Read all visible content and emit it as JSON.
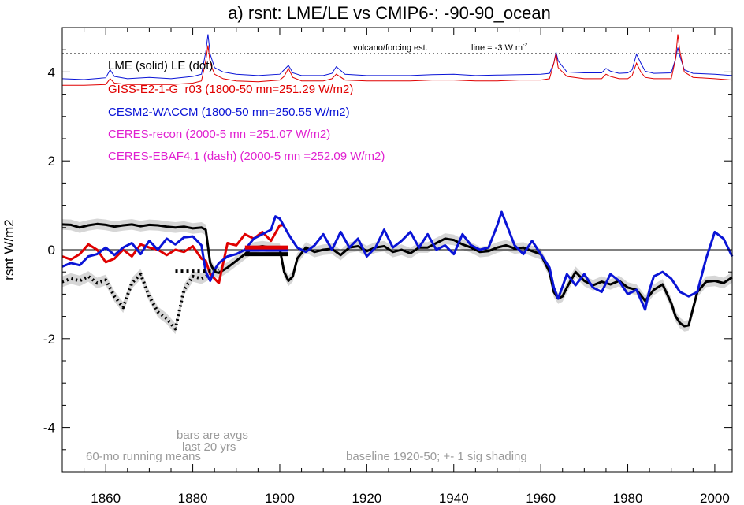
{
  "chart_data": {
    "type": "line",
    "title": "a) rsnt: LME/LE vs CMIP6-: -90-90_ocean",
    "ylabel": "rsnt W/m2",
    "xlabel": "",
    "xlim": [
      1850,
      2004
    ],
    "ylim": [
      -5,
      5
    ],
    "x_ticks": [
      1860,
      1880,
      1900,
      1920,
      1940,
      1960,
      1980,
      2000
    ],
    "y_ticks": [
      -4,
      -2,
      0,
      2,
      4
    ],
    "grid": false,
    "zero_line": 0,
    "volcano_panel": {
      "label": "volcano/forcing est.",
      "line_label": "line = -3 W m",
      "line_label_sup": "-2",
      "reference_y": 4.42
    },
    "legend": [
      {
        "text": "LME (solid)   LE (dot)",
        "color": "#000000"
      },
      {
        "text": "GISS-E2-1-G_r03 (1800-50 mn=251.29 W/m2)",
        "color": "#e00000"
      },
      {
        "text": "CESM2-WACCM (1800-50 mn=250.55 W/m2)",
        "color": "#0a14d6"
      },
      {
        "text": "CERES-recon (2000-5 mn =251.07 W/m2)",
        "color": "#e020d0"
      },
      {
        "text": "CERES-EBAF4.1 (dash) (2000-5 mn =252.09 W/m2)",
        "color": "#e020d0"
      }
    ],
    "annotations": {
      "bars_note_1": "bars are avgs",
      "bars_note_2": "last 20 yrs",
      "running_mean": "60-mo running means",
      "baseline": "baseline 1920-50; +- 1 sig shading"
    },
    "series": [
      {
        "name": "LME (solid)",
        "color": "#000000",
        "x": [
          1850,
          1852,
          1854,
          1856,
          1858,
          1860,
          1862,
          1864,
          1866,
          1868,
          1870,
          1872,
          1874,
          1876,
          1878,
          1880,
          1882,
          1883,
          1884,
          1885,
          1886,
          1888,
          1890,
          1892,
          1894,
          1896,
          1898,
          1900,
          1901,
          1902,
          1903,
          1904,
          1906,
          1908,
          1910,
          1912,
          1914,
          1916,
          1918,
          1920,
          1922,
          1924,
          1926,
          1928,
          1930,
          1932,
          1934,
          1936,
          1938,
          1940,
          1942,
          1944,
          1946,
          1948,
          1950,
          1952,
          1954,
          1956,
          1958,
          1960,
          1962,
          1963,
          1964,
          1965,
          1966,
          1968,
          1970,
          1972,
          1974,
          1976,
          1978,
          1980,
          1982,
          1984,
          1986,
          1988,
          1990,
          1991,
          1992,
          1993,
          1994,
          1996,
          1998,
          2000,
          2002,
          2004
        ],
        "y": [
          0.57,
          0.56,
          0.5,
          0.55,
          0.58,
          0.56,
          0.52,
          0.55,
          0.57,
          0.53,
          0.56,
          0.55,
          0.52,
          0.5,
          0.52,
          0.48,
          0.5,
          0.45,
          -0.3,
          -0.5,
          -0.52,
          -0.4,
          -0.25,
          -0.1,
          0.05,
          0.08,
          0.05,
          0.02,
          -0.5,
          -0.7,
          -0.6,
          -0.2,
          0.05,
          -0.05,
          0.0,
          0.02,
          -0.12,
          0.05,
          0.08,
          -0.03,
          0.05,
          0.08,
          -0.05,
          0.0,
          -0.08,
          0.05,
          0.05,
          0.15,
          0.25,
          0.22,
          0.12,
          0.05,
          -0.05,
          -0.03,
          0.05,
          0.1,
          0.03,
          0.05,
          -0.03,
          -0.1,
          -0.5,
          -0.95,
          -1.1,
          -1.05,
          -0.85,
          -0.5,
          -0.7,
          -0.8,
          -0.72,
          -0.78,
          -0.7,
          -0.85,
          -0.9,
          -1.15,
          -0.9,
          -0.78,
          -1.2,
          -1.5,
          -1.65,
          -1.72,
          -1.7,
          -0.95,
          -0.72,
          -0.7,
          -0.75,
          -0.62
        ],
        "sigma": 0.12
      },
      {
        "name": "LE (dot)",
        "color": "#000000",
        "style": "dotted",
        "x": [
          1850,
          1852,
          1854,
          1856,
          1858,
          1860,
          1862,
          1864,
          1866,
          1868,
          1870,
          1872,
          1874,
          1876,
          1878,
          1880,
          1882,
          1884,
          1886
        ],
        "y": [
          -0.72,
          -0.65,
          -0.7,
          -0.6,
          -0.75,
          -0.68,
          -1.05,
          -1.3,
          -0.75,
          -0.55,
          -1.05,
          -1.4,
          -1.55,
          -1.78,
          -0.9,
          -0.6,
          -0.65,
          -0.55,
          -0.45
        ],
        "sigma": 0.12
      },
      {
        "name": "GISS-E2-1-G_r03",
        "color": "#e00000",
        "x": [
          1850,
          1852,
          1854,
          1856,
          1858,
          1860,
          1862,
          1864,
          1866,
          1868,
          1870,
          1872,
          1874,
          1876,
          1878,
          1880,
          1882,
          1883,
          1884,
          1885,
          1886,
          1887,
          1888,
          1890,
          1892,
          1894,
          1896,
          1898,
          1900,
          1901
        ],
        "y": [
          -0.15,
          -0.22,
          -0.1,
          0.12,
          0.0,
          -0.28,
          -0.2,
          0.0,
          -0.15,
          0.12,
          0.05,
          0.0,
          -0.12,
          0.0,
          -0.05,
          0.08,
          -0.2,
          -0.25,
          -0.55,
          -0.65,
          -0.75,
          -0.3,
          0.15,
          0.1,
          0.35,
          0.25,
          0.4,
          0.2,
          0.55,
          0.55
        ]
      },
      {
        "name": "CESM2-WACCM",
        "color": "#0a14d6",
        "x": [
          1850,
          1852,
          1854,
          1856,
          1858,
          1860,
          1862,
          1864,
          1866,
          1868,
          1870,
          1872,
          1874,
          1876,
          1878,
          1880,
          1882,
          1883,
          1884,
          1885,
          1886,
          1888,
          1890,
          1892,
          1894,
          1896,
          1898,
          1899,
          1900,
          1902,
          1904,
          1906,
          1908,
          1910,
          1912,
          1914,
          1916,
          1918,
          1920,
          1922,
          1924,
          1926,
          1928,
          1930,
          1932,
          1934,
          1936,
          1938,
          1940,
          1942,
          1944,
          1946,
          1948,
          1950,
          1951,
          1952,
          1954,
          1956,
          1958,
          1960,
          1962,
          1963,
          1964,
          1966,
          1968,
          1970,
          1972,
          1974,
          1976,
          1978,
          1980,
          1982,
          1984,
          1985,
          1986,
          1988,
          1990,
          1992,
          1994,
          1996,
          1998,
          2000,
          2002,
          2004
        ],
        "y": [
          -0.38,
          -0.3,
          -0.35,
          -0.15,
          -0.1,
          0.05,
          -0.12,
          0.05,
          0.15,
          -0.1,
          0.2,
          0.0,
          0.25,
          0.12,
          0.28,
          0.3,
          0.1,
          -0.5,
          -0.7,
          -0.45,
          -0.3,
          -0.15,
          -0.1,
          0.0,
          0.25,
          0.35,
          0.45,
          0.75,
          0.7,
          0.35,
          0.05,
          -0.05,
          0.1,
          0.35,
          0.0,
          0.4,
          0.05,
          0.25,
          -0.15,
          0.05,
          0.45,
          0.05,
          0.2,
          0.4,
          0.05,
          0.35,
          0.0,
          0.1,
          -0.1,
          0.35,
          0.1,
          0.0,
          0.05,
          0.55,
          0.85,
          0.6,
          0.1,
          -0.1,
          0.2,
          -0.1,
          -0.4,
          -0.85,
          -1.1,
          -0.55,
          -0.8,
          -0.55,
          -0.85,
          -0.95,
          -0.55,
          -0.7,
          -1.0,
          -0.9,
          -1.35,
          -0.9,
          -0.6,
          -0.5,
          -0.65,
          -0.95,
          -1.05,
          -0.95,
          -0.2,
          0.4,
          0.25,
          -0.15
        ]
      }
    ],
    "bars": [
      {
        "series": "LE",
        "x0": 1876,
        "x1": 1886,
        "y": -0.48,
        "color": "#000000",
        "style": "dotted"
      },
      {
        "series": "LME",
        "x0": 1892,
        "x1": 1902,
        "y": -0.1,
        "color": "#000000"
      },
      {
        "series": "CESM2-WACCM",
        "x0": 1892,
        "x1": 1902,
        "y": 0.0,
        "color": "#0a14d6"
      },
      {
        "series": "GISS-E2-1-G_r03",
        "x0": 1892,
        "x1": 1902,
        "y": 0.05,
        "color": "#e00000"
      }
    ],
    "forcing": [
      {
        "name": "volcano/forcing (blue)",
        "color": "#0a14d6",
        "x": [
          1850,
          1855,
          1860,
          1861,
          1862,
          1865,
          1870,
          1875,
          1880,
          1882,
          1883,
          1883.5,
          1884,
          1885,
          1887,
          1890,
          1895,
          1900,
          1901,
          1902,
          1903,
          1905,
          1910,
          1912,
          1913,
          1915,
          1920,
          1925,
          1930,
          1935,
          1940,
          1945,
          1950,
          1955,
          1960,
          1962,
          1963,
          1963.5,
          1964,
          1966,
          1970,
          1974,
          1975,
          1976,
          1978,
          1980,
          1981,
          1982,
          1983,
          1984,
          1986,
          1990,
          1991,
          1991.5,
          1992,
          1993,
          1995,
          2000,
          2004
        ],
        "y": [
          3.85,
          3.83,
          3.87,
          4.05,
          3.9,
          3.85,
          3.88,
          3.85,
          3.9,
          3.95,
          4.45,
          4.85,
          4.4,
          4.1,
          4.0,
          3.95,
          3.92,
          3.95,
          4.05,
          4.15,
          3.98,
          3.92,
          3.92,
          3.97,
          4.12,
          3.95,
          3.92,
          3.92,
          3.92,
          3.94,
          3.95,
          3.92,
          3.93,
          3.94,
          3.95,
          3.97,
          4.2,
          4.45,
          4.25,
          4.0,
          3.98,
          3.98,
          4.08,
          4.02,
          3.97,
          3.98,
          4.05,
          4.4,
          4.2,
          4.02,
          3.97,
          3.98,
          4.3,
          4.55,
          4.35,
          4.05,
          3.97,
          3.95,
          3.92
        ]
      },
      {
        "name": "volcano/forcing (red)",
        "color": "#e00000",
        "x": [
          1850,
          1855,
          1860,
          1861,
          1862,
          1865,
          1870,
          1875,
          1880,
          1882,
          1883,
          1883.5,
          1884,
          1885,
          1887,
          1890,
          1895,
          1900,
          1901,
          1902,
          1903,
          1905,
          1910,
          1912,
          1913,
          1915,
          1920,
          1925,
          1930,
          1935,
          1940,
          1945,
          1950,
          1955,
          1960,
          1962,
          1963,
          1963.5,
          1964,
          1966,
          1970,
          1974,
          1975,
          1976,
          1978,
          1980,
          1981,
          1982,
          1983,
          1984,
          1986,
          1990,
          1991,
          1991.5,
          1992,
          1993,
          1995,
          2000,
          2004
        ],
        "y": [
          3.7,
          3.7,
          3.72,
          3.85,
          3.75,
          3.72,
          3.72,
          3.72,
          3.75,
          3.8,
          4.25,
          4.6,
          4.2,
          3.95,
          3.85,
          3.8,
          3.78,
          3.82,
          3.9,
          4.08,
          3.88,
          3.8,
          3.8,
          3.85,
          3.95,
          3.82,
          3.8,
          3.8,
          3.8,
          3.82,
          3.82,
          3.8,
          3.8,
          3.82,
          3.82,
          3.85,
          4.2,
          4.42,
          4.1,
          3.9,
          3.85,
          3.85,
          3.95,
          3.9,
          3.85,
          3.85,
          3.92,
          4.2,
          4.0,
          3.88,
          3.85,
          3.85,
          4.3,
          4.85,
          4.45,
          4.0,
          3.88,
          3.85,
          3.82
        ]
      }
    ]
  }
}
